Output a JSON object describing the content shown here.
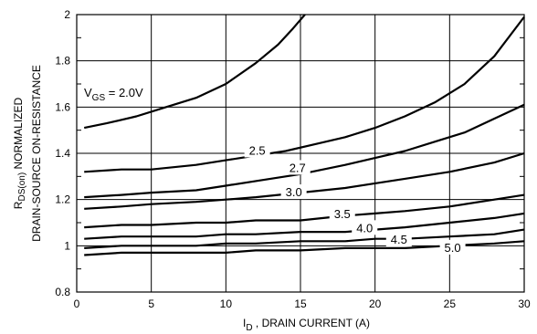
{
  "chart_data": {
    "type": "line",
    "xlabel_main": "I",
    "xlabel_sub": "D",
    "xlabel_rest": " , DRAIN CURRENT (A)",
    "ylabel_line1_main": "R",
    "ylabel_line1_sub": "DS(on)",
    "ylabel_line1_rest": " NORMALIZED",
    "ylabel_line2": "DRAIN-SOURCE ON-RESISTANCE",
    "xlim": [
      0,
      30
    ],
    "ylim": [
      0.8,
      2.0
    ],
    "xticks": [
      0,
      5,
      10,
      15,
      20,
      25,
      30
    ],
    "yticks": [
      0.8,
      1,
      1.2,
      1.4,
      1.6,
      1.8,
      2
    ],
    "ytick_labels": [
      "0.8",
      "1",
      "1.2",
      "1.4",
      "1.6",
      "1.8",
      "2"
    ],
    "grid": true,
    "series": [
      {
        "name_main": "V",
        "name_sub": "GS",
        "name_rest": " = 2.0V",
        "x": [
          0.5,
          2,
          4,
          6,
          8,
          10,
          12,
          13.5,
          14.5,
          15.3
        ],
        "y": [
          1.51,
          1.53,
          1.56,
          1.6,
          1.64,
          1.7,
          1.79,
          1.87,
          1.94,
          2.0
        ]
      },
      {
        "name": "2.5",
        "x": [
          0.5,
          3,
          5,
          8,
          10,
          12,
          14,
          16,
          18,
          20,
          22,
          24,
          26,
          28,
          30
        ],
        "y": [
          1.32,
          1.33,
          1.33,
          1.35,
          1.37,
          1.39,
          1.41,
          1.44,
          1.47,
          1.51,
          1.56,
          1.62,
          1.7,
          1.82,
          1.99
        ]
      },
      {
        "name": "2.7",
        "x": [
          0.5,
          3,
          5,
          8,
          10,
          12,
          15,
          18,
          20,
          22,
          24,
          26,
          28,
          30
        ],
        "y": [
          1.21,
          1.22,
          1.23,
          1.24,
          1.26,
          1.28,
          1.31,
          1.35,
          1.38,
          1.41,
          1.45,
          1.49,
          1.55,
          1.61
        ]
      },
      {
        "name": "3.0",
        "x": [
          0.5,
          3,
          5,
          8,
          10,
          12,
          15,
          18,
          20,
          22,
          25,
          28,
          30
        ],
        "y": [
          1.16,
          1.17,
          1.18,
          1.19,
          1.2,
          1.21,
          1.23,
          1.25,
          1.27,
          1.29,
          1.32,
          1.36,
          1.4
        ]
      },
      {
        "name": "3.5",
        "x": [
          0.5,
          3,
          5,
          8,
          10,
          12,
          15,
          18,
          20,
          22,
          25,
          28,
          30
        ],
        "y": [
          1.08,
          1.09,
          1.09,
          1.1,
          1.1,
          1.11,
          1.11,
          1.13,
          1.14,
          1.15,
          1.17,
          1.2,
          1.22
        ]
      },
      {
        "name": "4.0",
        "x": [
          0.5,
          3,
          5,
          8,
          10,
          12,
          15,
          18,
          20,
          22,
          25,
          28,
          30
        ],
        "y": [
          1.03,
          1.04,
          1.04,
          1.04,
          1.05,
          1.05,
          1.06,
          1.06,
          1.07,
          1.08,
          1.1,
          1.12,
          1.14
        ]
      },
      {
        "name": "4.5",
        "x": [
          0.5,
          3,
          5,
          8,
          10,
          12,
          15,
          18,
          20,
          22,
          25,
          28,
          30
        ],
        "y": [
          0.99,
          1.0,
          1.0,
          1.0,
          1.01,
          1.01,
          1.02,
          1.02,
          1.03,
          1.03,
          1.04,
          1.05,
          1.07
        ]
      },
      {
        "name": "5.0",
        "x": [
          0.5,
          3,
          5,
          8,
          10,
          12,
          15,
          18,
          20,
          22,
          25,
          28,
          30
        ],
        "y": [
          0.96,
          0.97,
          0.97,
          0.97,
          0.97,
          0.98,
          0.98,
          0.99,
          0.99,
          0.99,
          1.0,
          1.01,
          1.02
        ]
      }
    ]
  }
}
